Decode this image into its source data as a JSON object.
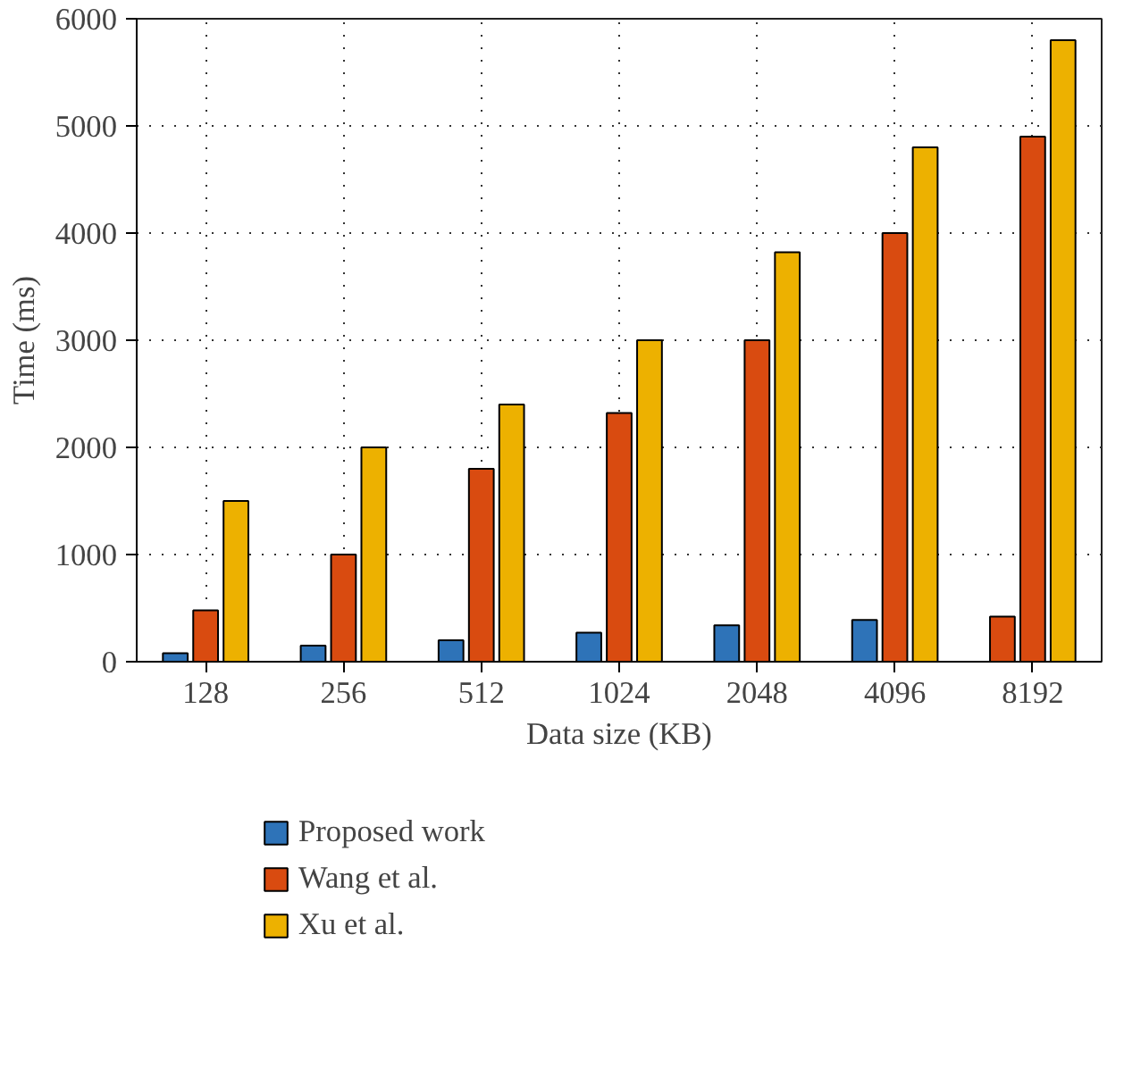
{
  "chart_data": {
    "type": "bar",
    "xlabel": "Data size (KB)",
    "ylabel": "Time (ms)",
    "categories": [
      "128",
      "256",
      "512",
      "1024",
      "2048",
      "4096",
      "8192"
    ],
    "series": [
      {
        "name": "Proposed work",
        "color": "#2e73b8",
        "colors": [
          "#2e73b8",
          "#2e73b8",
          "#2e73b8",
          "#2e73b8",
          "#2e73b8",
          "#2e73b8",
          "#d94b10"
        ],
        "values": [
          80,
          150,
          200,
          270,
          340,
          390,
          420
        ]
      },
      {
        "name": "Wang et al.",
        "color": "#d94b10",
        "values": [
          480,
          1000,
          1800,
          2320,
          3000,
          4000,
          4900
        ]
      },
      {
        "name": "Xu et al.",
        "color": "#edb100",
        "values": [
          1500,
          2000,
          2400,
          3000,
          3820,
          4800,
          5800
        ]
      }
    ],
    "ylim": [
      0,
      6000
    ],
    "yticks": [
      0,
      1000,
      2000,
      3000,
      4000,
      5000,
      6000
    ],
    "grid": true,
    "legend": "bottom"
  }
}
